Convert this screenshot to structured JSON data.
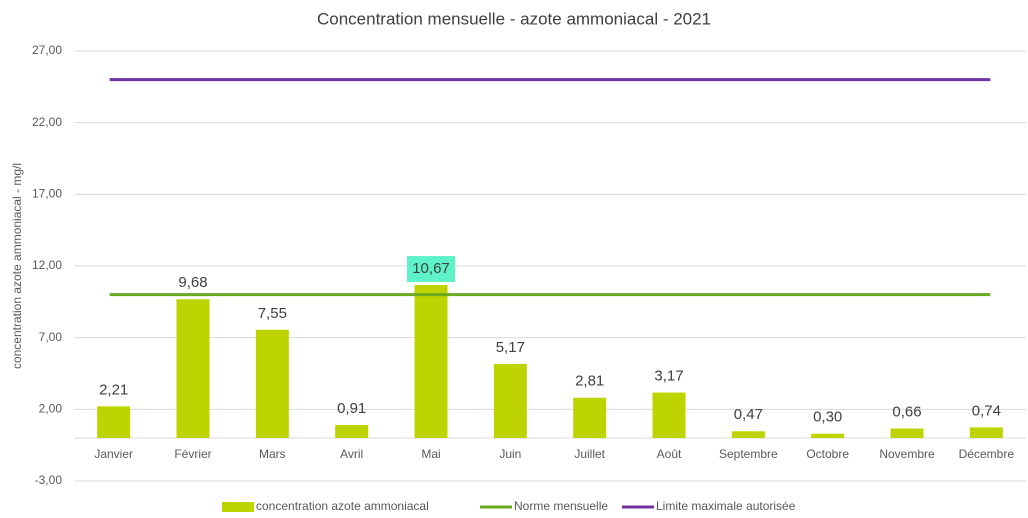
{
  "chart_data": {
    "type": "bar",
    "title": "Concentration mensuelle - azote ammoniacal - 2021",
    "y_label": "concentration azote ammoniacal - mg/l",
    "categories": [
      "Janvier",
      "Février",
      "Mars",
      "Avril",
      "Mai",
      "Juin",
      "Juillet",
      "Août",
      "Septembre",
      "Octobre",
      "Novembre",
      "Décembre"
    ],
    "series": [
      {
        "name": "concentration azote ammoniacal",
        "type": "bar",
        "color": "#bdd400",
        "values": [
          2.21,
          9.68,
          7.55,
          0.91,
          10.67,
          5.17,
          2.81,
          3.17,
          0.47,
          0.3,
          0.66,
          0.74
        ],
        "value_labels": [
          "2,21",
          "9,68",
          "7,55",
          "0,91",
          "10,67",
          "5,17",
          "2,81",
          "3,17",
          "0,47",
          "0,30",
          "0,66",
          "0,74"
        ],
        "highlight": {
          "index": 4,
          "color": "#5ef2c8"
        }
      },
      {
        "name": "Norme mensuelle",
        "type": "line",
        "color": "#6aaa1e",
        "values": [
          10,
          10,
          10,
          10,
          10,
          10,
          10,
          10,
          10,
          10,
          10,
          10
        ]
      },
      {
        "name": "Limite maximale autorisée",
        "type": "line",
        "color": "#7030a0",
        "values": [
          25,
          25,
          25,
          25,
          25,
          25,
          25,
          25,
          25,
          25,
          25,
          25
        ]
      }
    ],
    "ylim": [
      -3,
      27
    ],
    "yticks": [
      {
        "value": -3,
        "label": "-3,00"
      },
      {
        "value": 2,
        "label": "2,00"
      },
      {
        "value": 7,
        "label": "7,00"
      },
      {
        "value": 12,
        "label": "12,00"
      },
      {
        "value": 17,
        "label": "17,00"
      },
      {
        "value": 22,
        "label": "22,00"
      },
      {
        "value": 27,
        "label": "27,00"
      }
    ],
    "grid": true,
    "legend": "bottom"
  }
}
